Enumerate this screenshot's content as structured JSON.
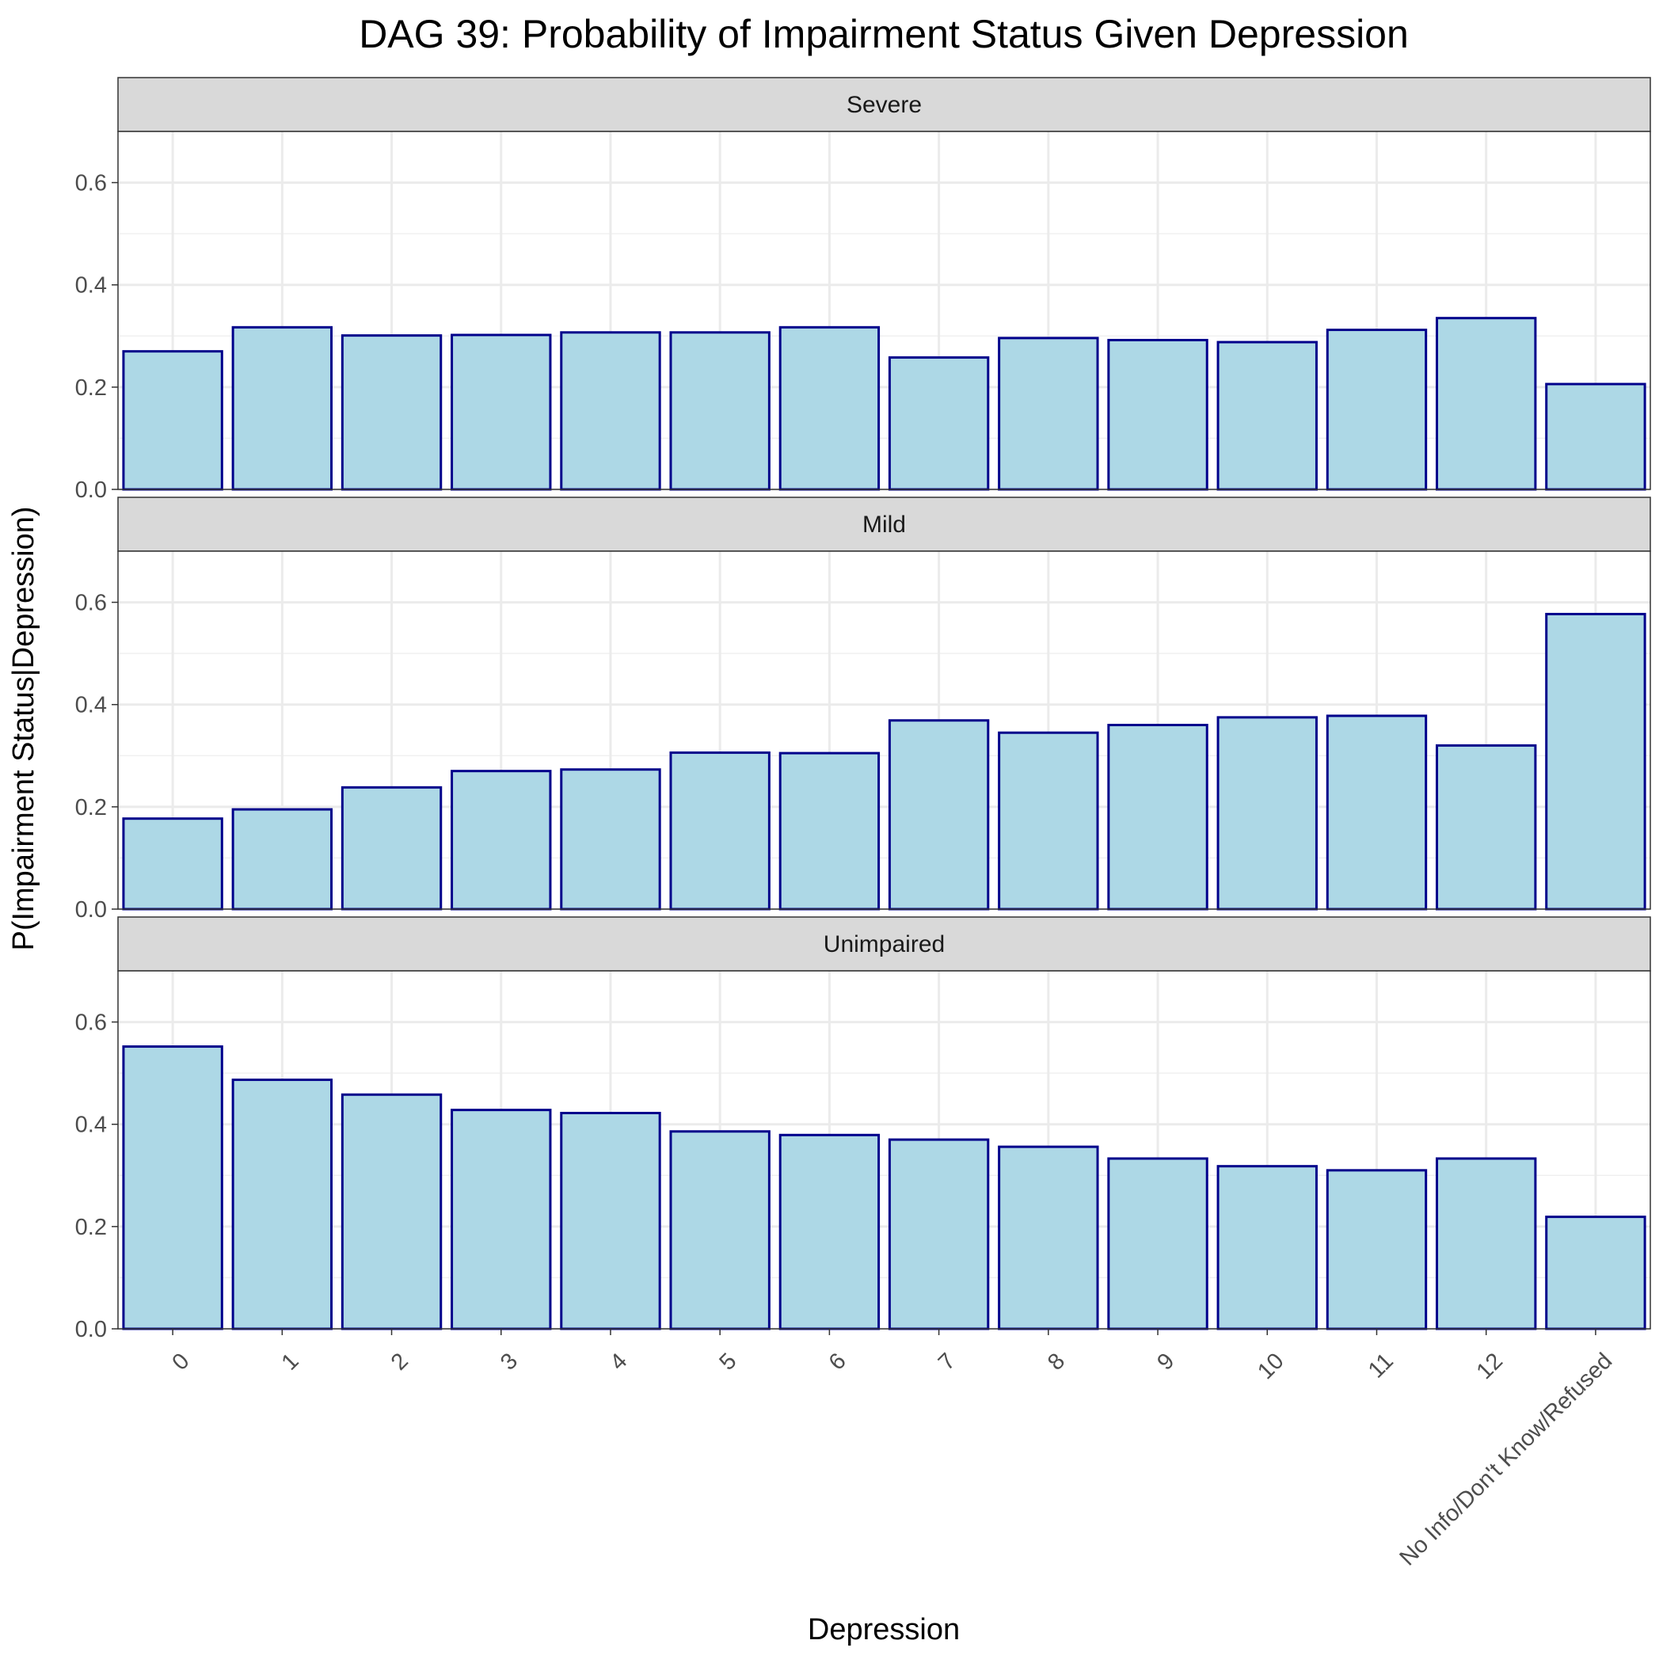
{
  "chart_data": {
    "type": "bar",
    "title": "DAG 39: Probability of Impairment Status Given Depression",
    "xlabel": "Depression",
    "ylabel": "P(Impairment Status|Depression)",
    "categories": [
      "0",
      "1",
      "2",
      "3",
      "4",
      "5",
      "6",
      "7",
      "8",
      "9",
      "10",
      "11",
      "12",
      "No Info/Don't Know/Refused"
    ],
    "ylim": [
      0,
      0.7
    ],
    "yticks": [
      0.0,
      0.2,
      0.4,
      0.6
    ],
    "ytick_labels": [
      "0.0",
      "0.2",
      "0.4",
      "0.6"
    ],
    "grid": true,
    "bar_fill": "#add8e6",
    "bar_outline": "#00008b",
    "strip_fill": "#d9d9d9",
    "panels": [
      {
        "label": "Severe",
        "values": [
          0.27,
          0.317,
          0.301,
          0.302,
          0.307,
          0.307,
          0.317,
          0.258,
          0.296,
          0.292,
          0.288,
          0.312,
          0.335,
          0.206
        ]
      },
      {
        "label": "Mild",
        "values": [
          0.177,
          0.195,
          0.238,
          0.27,
          0.273,
          0.306,
          0.305,
          0.369,
          0.345,
          0.36,
          0.375,
          0.378,
          0.32,
          0.577
        ]
      },
      {
        "label": "Unimpaired",
        "values": [
          0.552,
          0.487,
          0.458,
          0.428,
          0.422,
          0.386,
          0.379,
          0.37,
          0.356,
          0.333,
          0.318,
          0.31,
          0.333,
          0.219
        ]
      }
    ]
  }
}
